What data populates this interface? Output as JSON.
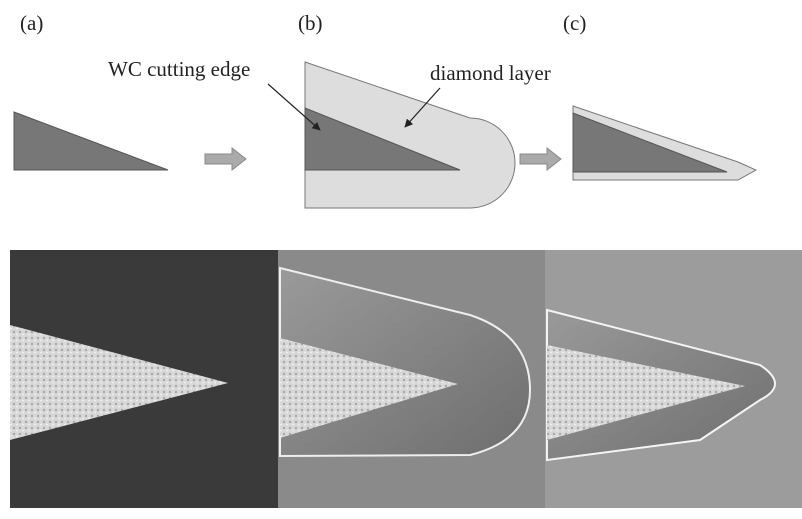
{
  "panels": [
    {
      "label": "(a)"
    },
    {
      "label": "(b)"
    },
    {
      "label": "(c)"
    }
  ],
  "annotations": {
    "wc_edge": "WC cutting edge",
    "diamond_layer": "diamond layer"
  }
}
